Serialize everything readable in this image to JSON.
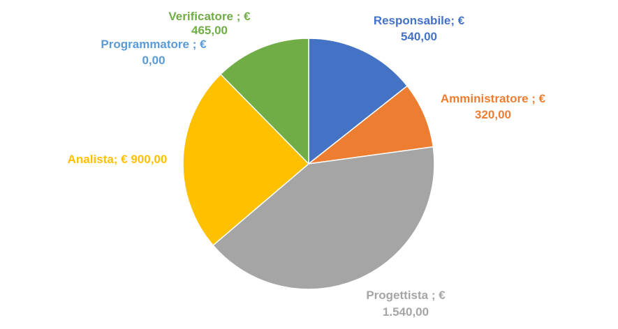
{
  "chart_data": {
    "type": "pie",
    "title": "",
    "categories": [
      "Responsabile",
      "Amministratore",
      "Progettista",
      "Analista",
      "Programmatore",
      "Verificatore"
    ],
    "values": [
      540.0,
      320.0,
      1540.0,
      900.0,
      0.0,
      465.0
    ],
    "colors": [
      "#4472C4",
      "#ED7D31",
      "#A5A5A5",
      "#FFC000",
      "#5B9BD5",
      "#70AD47"
    ],
    "start_angle_deg": 0,
    "direction": "clockwise",
    "legend": "none",
    "data_labels": [
      {
        "line1": "Responsabile; €",
        "line2": "540,00"
      },
      {
        "line1": "Amministratore ; €",
        "line2": "320,00"
      },
      {
        "line1": "Progettista ; €",
        "line2": "1.540,00"
      },
      {
        "line1": "Analista; € 900,00",
        "line2": ""
      },
      {
        "line1": "Programmatore ; €",
        "line2": "0,00"
      },
      {
        "line1": "Verificatore ; €",
        "line2": "465,00"
      }
    ]
  }
}
